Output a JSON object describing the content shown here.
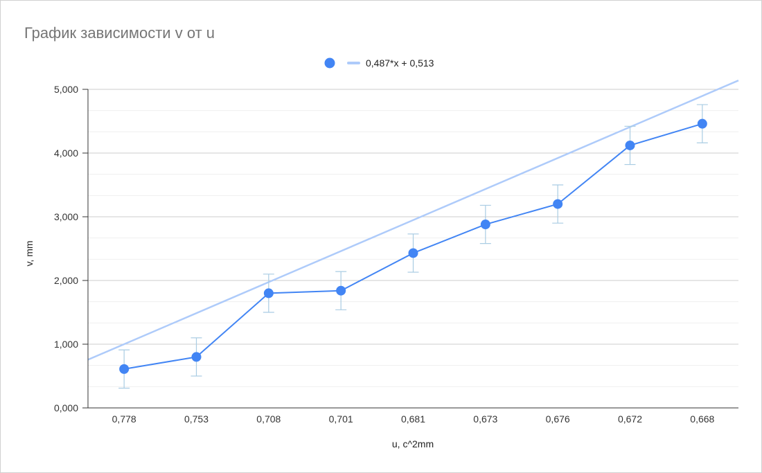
{
  "chart_data": {
    "type": "line",
    "title": "График зависимости v от u",
    "xlabel": "u, c^2mm",
    "ylabel": "v, mm",
    "categories": [
      "0,778",
      "0,753",
      "0,708",
      "0,701",
      "0,681",
      "0,673",
      "0,676",
      "0,672",
      "0,668"
    ],
    "series": [
      {
        "name": "",
        "values": [
          0.61,
          0.8,
          1.8,
          1.84,
          2.43,
          2.88,
          3.2,
          4.12,
          4.46
        ],
        "error_bar": 0.3,
        "color": "#4285f4"
      }
    ],
    "trendline": {
      "label": "0,487*x + 0,513",
      "slope": 0.487,
      "intercept": 0.513,
      "color": "#aecbfa"
    },
    "ylim": [
      0,
      5
    ],
    "yticks": [
      "0,000",
      "1,000",
      "2,000",
      "3,000",
      "4,000",
      "5,000"
    ],
    "grid": true,
    "legend_position": "top"
  }
}
